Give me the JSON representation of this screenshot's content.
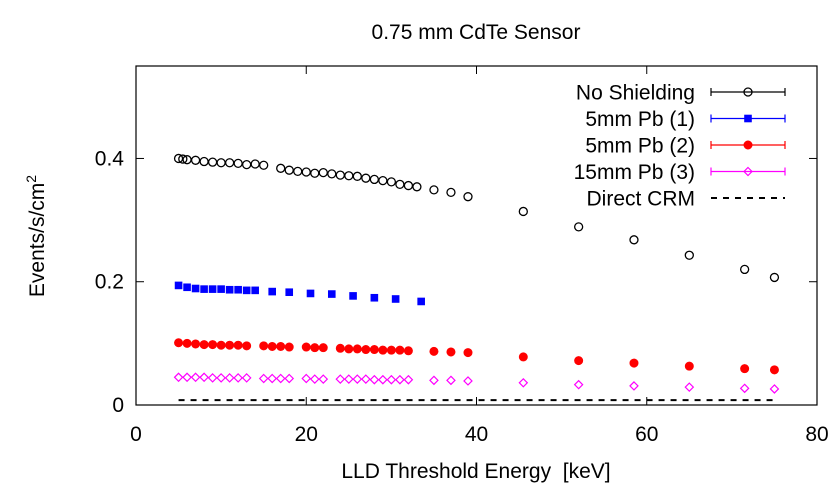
{
  "chart_data": {
    "type": "scatter",
    "title": "0.75 mm CdTe Sensor",
    "xlabel": "LLD Threshold Energy  [keV]",
    "ylabel": "Events/s/cm",
    "ylabel_superscript": "2",
    "xlim": [
      0,
      80
    ],
    "ylim": [
      0,
      0.55
    ],
    "xticks": [
      0,
      20,
      40,
      60,
      80
    ],
    "yticks": [
      0,
      0.2,
      0.4
    ],
    "xtick_labels": [
      "0",
      "20",
      "40",
      "60",
      "80"
    ],
    "ytick_labels": [
      "0",
      "0.2",
      "0.4"
    ],
    "grid": false,
    "legend_position": "top-right",
    "series": [
      {
        "name": "No Shielding",
        "color": "#000000",
        "marker": "open-circle",
        "x": [
          5,
          5.5,
          6,
          7,
          8,
          9,
          10,
          11,
          12,
          13,
          14,
          15,
          17,
          18,
          19,
          20,
          21,
          22,
          23,
          24,
          25,
          26,
          27,
          28,
          29,
          30,
          31,
          32,
          33,
          35,
          37,
          39,
          45.5,
          52,
          58.5,
          65,
          71.5,
          75
        ],
        "y": [
          0.4,
          0.399,
          0.398,
          0.397,
          0.395,
          0.394,
          0.393,
          0.393,
          0.392,
          0.39,
          0.391,
          0.389,
          0.384,
          0.381,
          0.379,
          0.378,
          0.376,
          0.377,
          0.375,
          0.373,
          0.372,
          0.371,
          0.368,
          0.366,
          0.364,
          0.362,
          0.358,
          0.356,
          0.354,
          0.349,
          0.345,
          0.338,
          0.314,
          0.289,
          0.268,
          0.243,
          0.22,
          0.207
        ]
      },
      {
        "name": "5mm Pb (1)",
        "color": "#0000ff",
        "marker": "filled-square",
        "x": [
          5,
          6,
          7,
          8,
          9,
          10,
          11,
          12,
          13,
          14,
          16,
          18,
          20.5,
          23,
          25.5,
          28,
          30.5,
          33.5
        ],
        "y": [
          0.194,
          0.191,
          0.189,
          0.188,
          0.188,
          0.188,
          0.187,
          0.187,
          0.186,
          0.186,
          0.184,
          0.183,
          0.181,
          0.18,
          0.177,
          0.174,
          0.172,
          0.168
        ]
      },
      {
        "name": "5mm Pb (2)",
        "color": "#ff0000",
        "marker": "filled-circle",
        "x": [
          5,
          6,
          7,
          8,
          9,
          10,
          11,
          12,
          13,
          15,
          16,
          17,
          18,
          20,
          21,
          22,
          24,
          25,
          26,
          27,
          28,
          29,
          30,
          31,
          32,
          35,
          37,
          39,
          45.5,
          52,
          58.5,
          65,
          71.5,
          75
        ],
        "y": [
          0.101,
          0.1,
          0.099,
          0.098,
          0.098,
          0.097,
          0.097,
          0.097,
          0.096,
          0.096,
          0.095,
          0.095,
          0.094,
          0.094,
          0.093,
          0.093,
          0.092,
          0.091,
          0.091,
          0.09,
          0.09,
          0.089,
          0.089,
          0.089,
          0.088,
          0.087,
          0.086,
          0.085,
          0.078,
          0.072,
          0.068,
          0.063,
          0.059,
          0.057
        ]
      },
      {
        "name": "15mm Pb (3)",
        "color": "#ff00ff",
        "marker": "open-diamond",
        "x": [
          5,
          6,
          7,
          8,
          9,
          10,
          11,
          12,
          13,
          15,
          16,
          17,
          18,
          20,
          21,
          22,
          24,
          25,
          26,
          27,
          28,
          29,
          30,
          31,
          32,
          35,
          37,
          39,
          45.5,
          52,
          58.5,
          65,
          71.5,
          75
        ],
        "y": [
          0.045,
          0.045,
          0.045,
          0.045,
          0.044,
          0.044,
          0.044,
          0.044,
          0.044,
          0.043,
          0.043,
          0.043,
          0.043,
          0.043,
          0.042,
          0.042,
          0.042,
          0.042,
          0.042,
          0.042,
          0.041,
          0.041,
          0.041,
          0.041,
          0.041,
          0.04,
          0.04,
          0.039,
          0.036,
          0.033,
          0.031,
          0.029,
          0.027,
          0.026
        ]
      },
      {
        "name": "Direct CRM",
        "color": "#000000",
        "line": "dashed",
        "x": [
          5,
          75
        ],
        "y": [
          0.008,
          0.008
        ]
      }
    ]
  }
}
